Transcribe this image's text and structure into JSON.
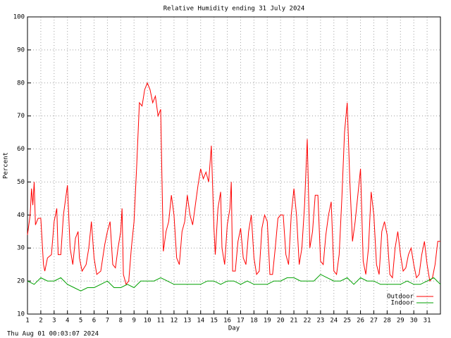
{
  "chart_data": {
    "type": "line",
    "title": "Relative Humidity ending 31 July 2024",
    "footer": "Thu Aug 01 00:03:07 2024",
    "x_label": "Day",
    "y_label": "Percent",
    "xlim": [
      1,
      32
    ],
    "xticks": [
      1,
      2,
      3,
      4,
      5,
      6,
      7,
      8,
      9,
      10,
      11,
      12,
      13,
      14,
      15,
      16,
      17,
      18,
      19,
      20,
      21,
      22,
      23,
      24,
      25,
      26,
      27,
      28,
      29,
      30,
      31
    ],
    "ylim": [
      10,
      100
    ],
    "yticks": [
      10,
      20,
      30,
      40,
      50,
      60,
      70,
      80,
      90,
      100
    ],
    "grid": true,
    "legend": "lower right",
    "series": [
      {
        "name": "Outdoor",
        "color": "#ff0000",
        "x": [
          1.0,
          1.2,
          1.3,
          1.4,
          1.5,
          1.6,
          1.8,
          2.0,
          2.2,
          2.3,
          2.5,
          2.8,
          3.0,
          3.2,
          3.3,
          3.5,
          3.7,
          3.9,
          4.0,
          4.2,
          4.4,
          4.6,
          4.8,
          4.9,
          5.1,
          5.4,
          5.6,
          5.8,
          6.0,
          6.2,
          6.5,
          6.8,
          7.0,
          7.2,
          7.4,
          7.6,
          7.8,
          8.0,
          8.1,
          8.2,
          8.4,
          8.6,
          8.8,
          9.0,
          9.2,
          9.4,
          9.6,
          9.8,
          10.0,
          10.2,
          10.4,
          10.6,
          10.8,
          11.0,
          11.2,
          11.4,
          11.6,
          11.8,
          12.0,
          12.2,
          12.4,
          12.6,
          12.8,
          13.0,
          13.2,
          13.4,
          13.6,
          13.8,
          14.0,
          14.2,
          14.4,
          14.6,
          14.8,
          15.0,
          15.1,
          15.3,
          15.5,
          15.6,
          15.8,
          16.0,
          16.2,
          16.3,
          16.4,
          16.6,
          16.8,
          17.0,
          17.2,
          17.4,
          17.6,
          17.8,
          18.0,
          18.2,
          18.4,
          18.6,
          18.8,
          19.0,
          19.2,
          19.4,
          19.6,
          19.8,
          20.0,
          20.2,
          20.4,
          20.6,
          20.8,
          21.0,
          21.2,
          21.4,
          21.6,
          21.8,
          22.0,
          22.2,
          22.4,
          22.6,
          22.8,
          23.0,
          23.2,
          23.4,
          23.6,
          23.8,
          24.0,
          24.2,
          24.4,
          24.6,
          24.8,
          25.0,
          25.2,
          25.4,
          25.6,
          25.8,
          26.0,
          26.2,
          26.4,
          26.6,
          26.8,
          27.0,
          27.2,
          27.4,
          27.6,
          27.8,
          28.0,
          28.2,
          28.4,
          28.6,
          28.8,
          29.0,
          29.2,
          29.4,
          29.6,
          29.8,
          30.0,
          30.2,
          30.4,
          30.6,
          30.8,
          31.0,
          31.2,
          31.4,
          31.6,
          31.8,
          32.0
        ],
        "values": [
          34,
          40,
          48,
          43,
          50,
          37,
          39,
          39,
          25,
          23,
          27,
          28,
          38,
          42,
          28,
          28,
          40,
          46,
          49,
          30,
          25,
          33,
          35,
          27,
          23,
          25,
          30,
          38,
          27,
          22,
          23,
          31,
          35,
          38,
          25,
          24,
          30,
          35,
          42,
          22,
          19,
          20,
          30,
          38,
          55,
          74,
          73,
          78,
          80,
          78,
          74,
          76,
          70,
          72,
          29,
          35,
          38,
          46,
          40,
          27,
          25,
          35,
          38,
          46,
          40,
          37,
          43,
          49,
          54,
          51,
          53,
          50,
          61,
          36,
          28,
          42,
          47,
          30,
          25,
          37,
          42,
          50,
          23,
          23,
          32,
          36,
          27,
          25,
          35,
          40,
          27,
          22,
          23,
          36,
          40,
          38,
          22,
          22,
          30,
          39,
          40,
          40,
          28,
          25,
          40,
          48,
          40,
          25,
          30,
          43,
          63,
          30,
          35,
          46,
          46,
          26,
          25,
          34,
          40,
          44,
          23,
          22,
          28,
          45,
          65,
          74,
          50,
          32,
          38,
          46,
          54,
          26,
          22,
          30,
          47,
          40,
          25,
          22,
          35,
          38,
          34,
          22,
          21,
          30,
          35,
          28,
          23,
          24,
          28,
          30,
          25,
          21,
          22,
          28,
          32,
          25,
          20,
          21,
          25,
          32,
          32
        ]
      },
      {
        "name": "Indoor",
        "color": "#00a000",
        "x": [
          1,
          1.5,
          2,
          2.5,
          3,
          3.5,
          4,
          4.5,
          5,
          5.5,
          6,
          6.5,
          7,
          7.5,
          8,
          8.5,
          9,
          9.5,
          10,
          10.5,
          11,
          11.5,
          12,
          12.5,
          13,
          13.5,
          14,
          14.5,
          15,
          15.5,
          16,
          16.5,
          17,
          17.5,
          18,
          18.5,
          19,
          19.5,
          20,
          20.5,
          21,
          21.5,
          22,
          22.5,
          23,
          23.5,
          24,
          24.5,
          25,
          25.5,
          26,
          26.5,
          27,
          27.5,
          28,
          28.5,
          29,
          29.5,
          30,
          30.5,
          31,
          31.5,
          32
        ],
        "values": [
          20,
          19,
          21,
          20,
          20,
          21,
          19,
          18,
          17,
          18,
          18,
          19,
          20,
          18,
          18,
          19,
          18,
          20,
          20,
          20,
          21,
          20,
          19,
          19,
          19,
          19,
          19,
          20,
          20,
          19,
          20,
          20,
          19,
          20,
          19,
          19,
          19,
          20,
          20,
          21,
          21,
          20,
          20,
          20,
          22,
          21,
          20,
          20,
          21,
          19,
          21,
          20,
          20,
          19,
          19,
          19,
          19,
          20,
          19,
          19,
          20,
          21,
          19
        ]
      }
    ]
  }
}
